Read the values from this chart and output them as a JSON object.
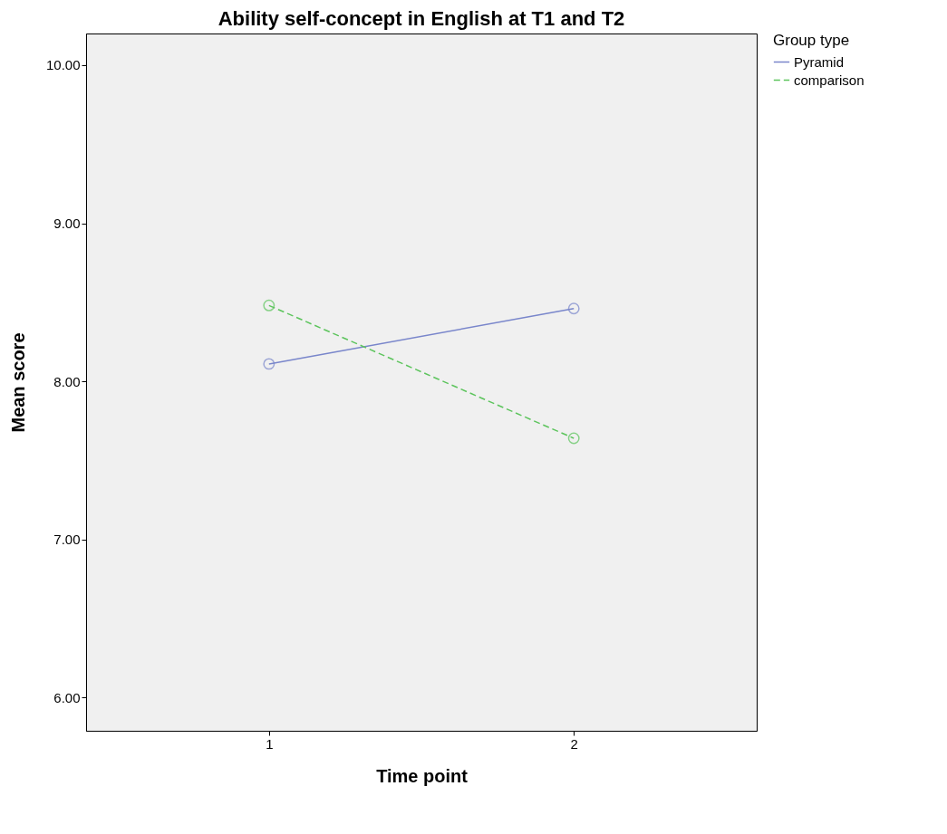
{
  "chart_data": {
    "type": "line",
    "title": "Ability self-concept in English at T1 and T2",
    "xlabel": "Time point",
    "ylabel": "Mean score",
    "legend_title": "Group type",
    "categories": [
      "1",
      "2"
    ],
    "series": [
      {
        "name": "Pyramid",
        "color": "#7986cb",
        "values": [
          8.11,
          8.46
        ],
        "line_style": "solid"
      },
      {
        "name": "comparison",
        "color": "#5cc45c",
        "values": [
          8.48,
          7.64
        ],
        "line_style": "dashed"
      }
    ],
    "ylim": [
      5.79,
      10.2
    ],
    "yticks": [
      {
        "value": 6,
        "label": "6.00"
      },
      {
        "value": 7,
        "label": "7.00"
      },
      {
        "value": 8,
        "label": "8.00"
      },
      {
        "value": 9,
        "label": "9.00"
      },
      {
        "value": 10,
        "label": "10.00"
      }
    ],
    "grid": false,
    "legend": "top right",
    "marker": "circle"
  }
}
